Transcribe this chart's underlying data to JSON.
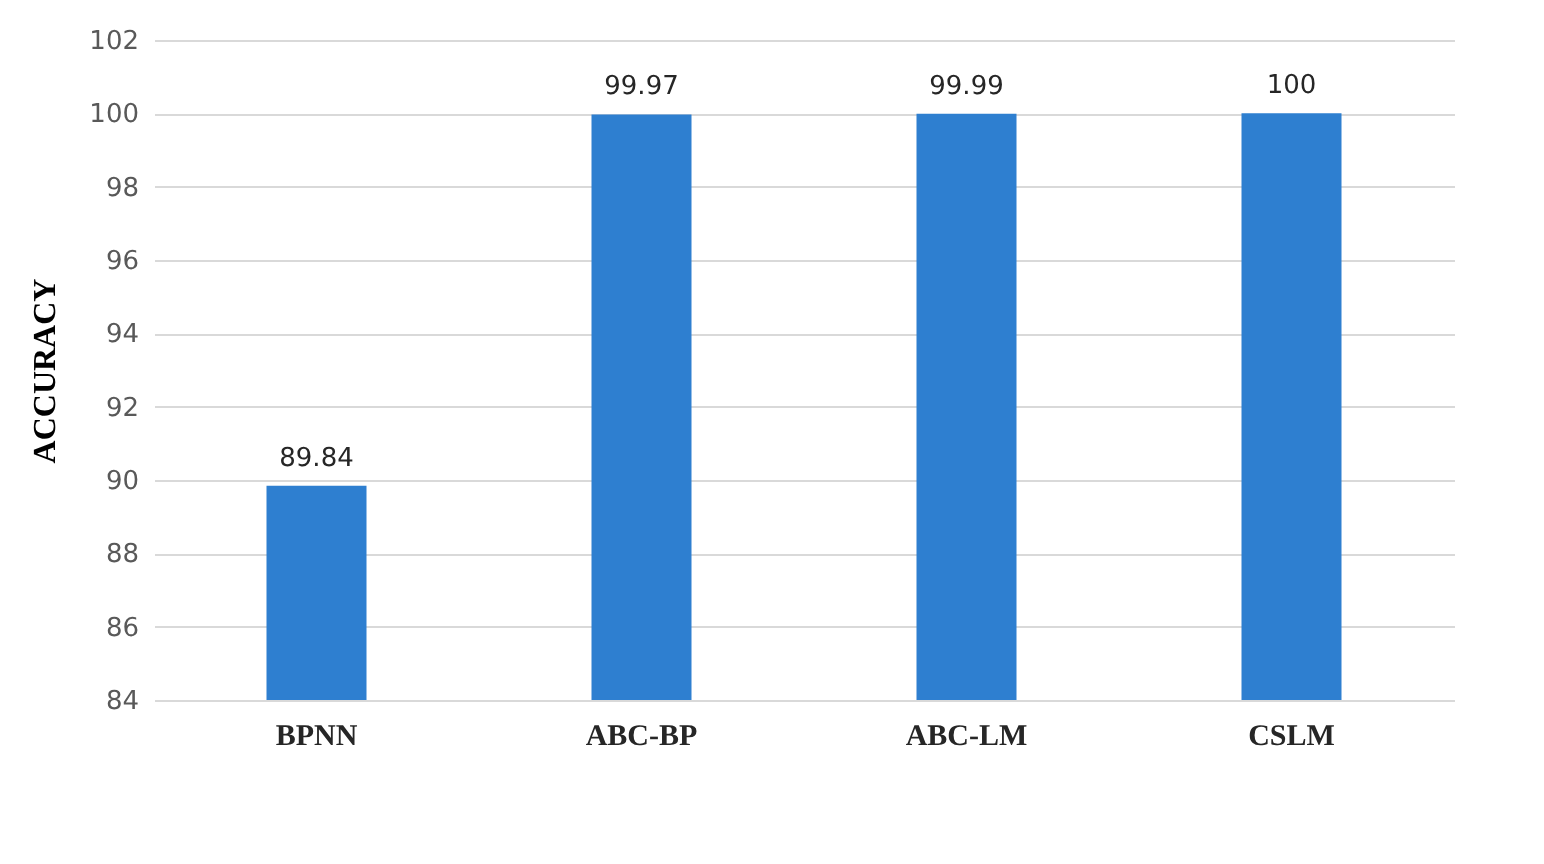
{
  "chart_data": {
    "type": "bar",
    "ylabel": "ACCURACY",
    "categories": [
      "BPNN",
      "ABC-BP",
      "ABC-LM",
      "CSLM"
    ],
    "values": [
      89.84,
      99.97,
      99.99,
      100
    ],
    "color": "#2e7fd0",
    "ylim": [
      84,
      102
    ],
    "yticks": [
      84,
      86,
      88,
      90,
      92,
      94,
      96,
      98,
      100,
      102
    ],
    "grid": "y",
    "data_labels": true
  }
}
